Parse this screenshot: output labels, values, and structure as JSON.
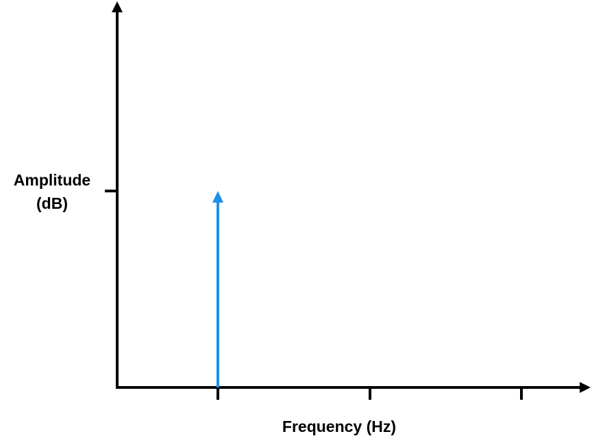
{
  "chart_data": {
    "type": "line",
    "xlabel": "Frequency (Hz)",
    "ylabel_line1": "Amplitude",
    "ylabel_line2": "(dB)",
    "x_ticks": 3,
    "y_ticks": 1,
    "series": [
      {
        "kind": "impulse",
        "x_tick_index": 0,
        "y_tick_index": 0,
        "color": "#1E90E6"
      }
    ],
    "axis_color": "#000000",
    "grid": false,
    "legend": "none"
  }
}
